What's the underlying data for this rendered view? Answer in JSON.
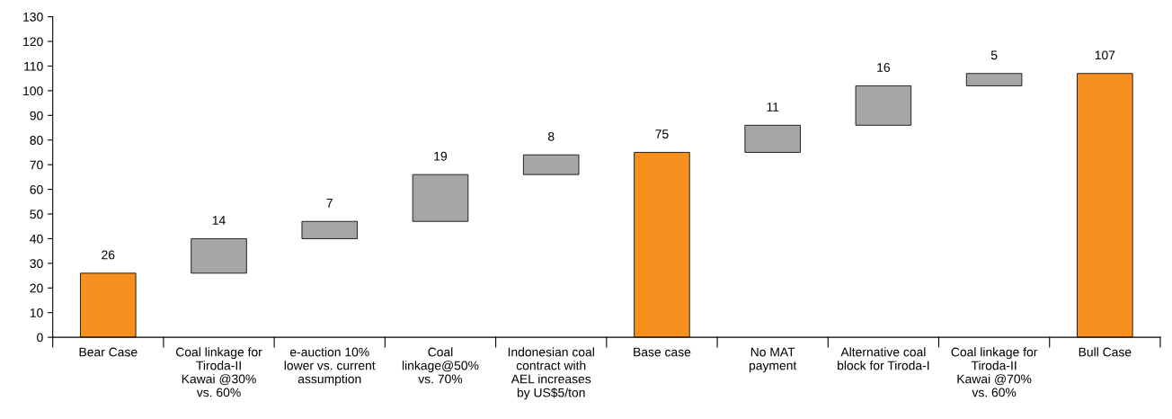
{
  "chart_data": {
    "type": "bar",
    "categories": [
      "Bear Case",
      "Coal linkage for\nTiroda-II\nKawai @30%\nvs. 60%",
      "e-auction 10%\nlower vs. current\nassumption",
      "Coal\nlinkage@50%\nvs. 70%",
      "Indonesian coal\ncontract with\nAEL increases\nby US$5/ton",
      "Base case",
      "No MAT\npayment",
      "Alternative coal\nblock for Tiroda-I",
      "Coal linkage for\nTiroda-II\nKawai @70%\nvs. 60%",
      "Bull Case"
    ],
    "values": [
      26,
      14,
      7,
      19,
      8,
      75,
      11,
      16,
      5,
      107
    ],
    "base": [
      0,
      26,
      40,
      47,
      66,
      0,
      75,
      86,
      102,
      0
    ],
    "colors": [
      "#f7901e",
      "#a6a6a6",
      "#a6a6a6",
      "#a6a6a6",
      "#a6a6a6",
      "#f7901e",
      "#a6a6a6",
      "#a6a6a6",
      "#a6a6a6",
      "#f7901e"
    ],
    "data_labels": true,
    "ylim": [
      0,
      130
    ],
    "yticks": [
      0,
      10,
      20,
      30,
      40,
      50,
      60,
      70,
      80,
      90,
      100,
      110,
      120,
      130
    ],
    "grid": false
  }
}
